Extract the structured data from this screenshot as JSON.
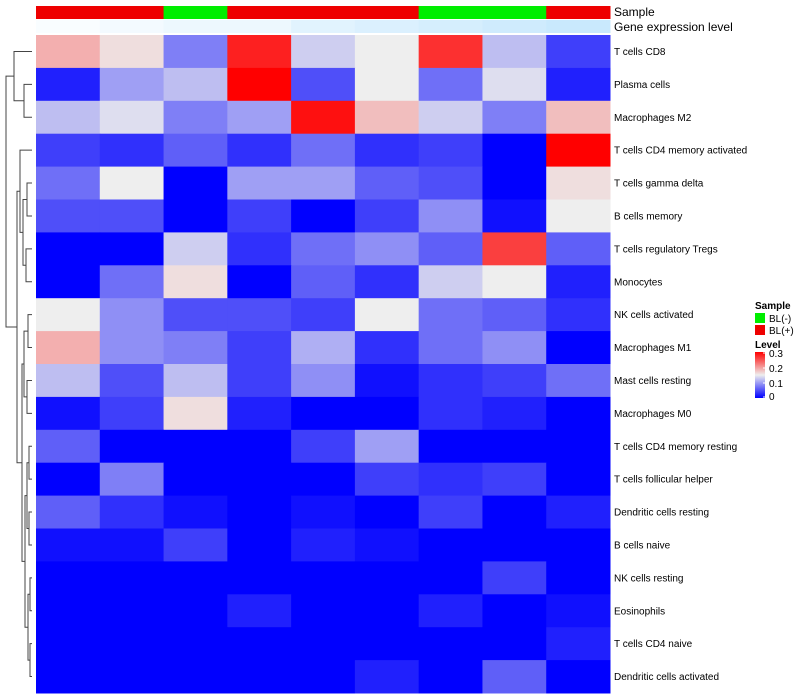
{
  "chart_data": {
    "type": "heatmap",
    "rows": [
      "T cells CD8",
      "Plasma cells",
      "Macrophages M2",
      "T cells CD4 memory activated",
      "T cells gamma delta",
      "B cells memory",
      "T cells regulatory  Tregs",
      "Monocytes",
      "NK cells activated",
      "Macrophages M1",
      "Mast cells resting",
      "Macrophages M0",
      "T cells CD4 memory resting",
      "T cells follicular helper",
      "Dendritic cells resting",
      "B cells naive",
      "NK cells resting",
      "Eosinophils",
      "T cells CD4 naive",
      "Dendritic cells activated"
    ],
    "values": [
      [
        0.19,
        0.16,
        0.08,
        0.28,
        0.13,
        0.15,
        0.27,
        0.12,
        0.04
      ],
      [
        0.02,
        0.1,
        0.12,
        0.3,
        0.05,
        0.15,
        0.07,
        0.14,
        0.02
      ],
      [
        0.12,
        0.14,
        0.08,
        0.1,
        0.29,
        0.18,
        0.13,
        0.08,
        0.18
      ],
      [
        0.04,
        0.03,
        0.06,
        0.03,
        0.07,
        0.03,
        0.04,
        0.0,
        0.3
      ],
      [
        0.07,
        0.15,
        0.0,
        0.1,
        0.1,
        0.06,
        0.05,
        0.0,
        0.16
      ],
      [
        0.05,
        0.05,
        0.0,
        0.04,
        0.0,
        0.04,
        0.09,
        0.01,
        0.15
      ],
      [
        0.0,
        0.0,
        0.13,
        0.03,
        0.07,
        0.09,
        0.06,
        0.26,
        0.06
      ],
      [
        0.0,
        0.07,
        0.16,
        0.0,
        0.06,
        0.03,
        0.13,
        0.15,
        0.02
      ],
      [
        0.15,
        0.09,
        0.05,
        0.05,
        0.04,
        0.15,
        0.07,
        0.06,
        0.03
      ],
      [
        0.19,
        0.09,
        0.08,
        0.04,
        0.11,
        0.03,
        0.07,
        0.09,
        0.0
      ],
      [
        0.12,
        0.05,
        0.12,
        0.04,
        0.09,
        0.01,
        0.03,
        0.04,
        0.07
      ],
      [
        0.01,
        0.04,
        0.16,
        0.02,
        0.0,
        0.0,
        0.03,
        0.02,
        0.0
      ],
      [
        0.06,
        0.0,
        0.0,
        0.0,
        0.04,
        0.1,
        0.0,
        0.0,
        0.0
      ],
      [
        0.0,
        0.08,
        0.0,
        0.0,
        0.0,
        0.04,
        0.03,
        0.04,
        0.0
      ],
      [
        0.06,
        0.03,
        0.01,
        0.0,
        0.01,
        0.0,
        0.04,
        0.0,
        0.02
      ],
      [
        0.01,
        0.01,
        0.04,
        0.0,
        0.02,
        0.01,
        0.0,
        0.0,
        0.0
      ],
      [
        0.0,
        0.0,
        0.0,
        0.0,
        0.0,
        0.0,
        0.0,
        0.04,
        0.0
      ],
      [
        0.0,
        0.0,
        0.0,
        0.02,
        0.0,
        0.0,
        0.02,
        0.0,
        0.01
      ],
      [
        0.0,
        0.0,
        0.0,
        0.0,
        0.0,
        0.0,
        0.0,
        0.0,
        0.02
      ],
      [
        0.0,
        0.0,
        0.0,
        0.0,
        0.0,
        0.02,
        0.0,
        0.06,
        0.0
      ]
    ],
    "annotations": {
      "sample": {
        "label": "Sample",
        "values": [
          "BL(+)",
          "BL(+)",
          "BL(-)",
          "BL(+)",
          "BL(+)",
          "BL(+)",
          "BL(-)",
          "BL(-)",
          "BL(+)"
        ]
      },
      "expression": {
        "label": "Gene expression level",
        "values": [
          0.95,
          0.9,
          0.85,
          0.85,
          0.75,
          0.7,
          0.65,
          0.6,
          0.55
        ]
      }
    },
    "legend": {
      "sample_title": "Sample",
      "sample_entries": [
        {
          "label": "BL(-)",
          "color": "#00ee00"
        },
        {
          "label": "BL(+)",
          "color": "#ee0000"
        }
      ],
      "level_title": "Level",
      "level_ticks": [
        "0.3",
        "0.2",
        "0.1",
        "0"
      ],
      "placement": "right"
    },
    "color_scale": {
      "min": 0,
      "mid": 0.15,
      "max": 0.3,
      "low": "#0000ff",
      "midColor": "#eeeeee",
      "high": "#ff0000"
    },
    "annotation_expression_scale": {
      "low": "#ffffff",
      "high": "#87cefa"
    },
    "dendrogram": true
  }
}
